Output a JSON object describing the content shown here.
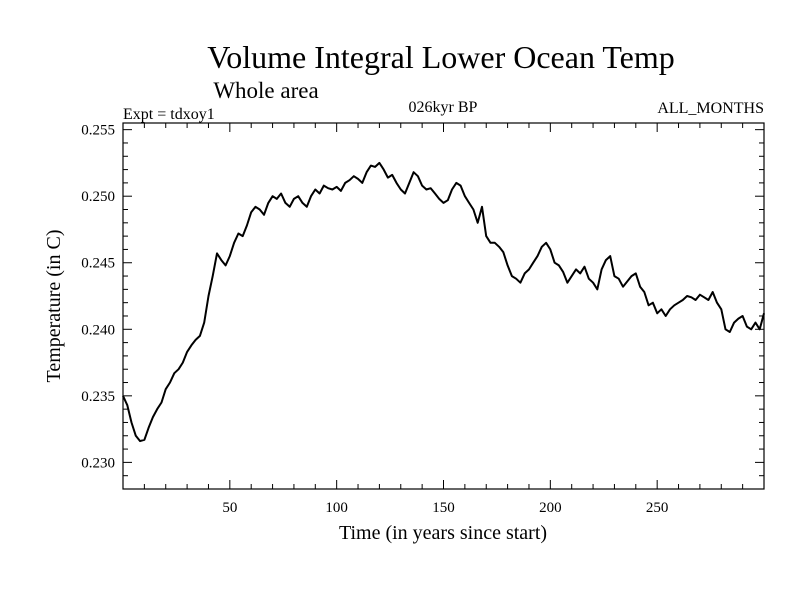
{
  "chart_data": {
    "type": "line",
    "title": "Volume Integral Lower Ocean Temp",
    "subtitle": "Whole area",
    "experiment": "Expt = tdxoy1",
    "period": "026kyr BP",
    "months": "ALL_MONTHS",
    "xlabel": "Time (in years since start)",
    "ylabel": "Temperature (in C)",
    "xlim": [
      0,
      300
    ],
    "ylim": [
      0.228,
      0.2555
    ],
    "xticks": [
      50,
      100,
      150,
      200,
      250
    ],
    "xtick_labels": [
      "50",
      "100",
      "150",
      "200",
      "250"
    ],
    "yticks": [
      0.23,
      0.235,
      0.24,
      0.245,
      0.25,
      0.255
    ],
    "ytick_labels": [
      "0.230",
      "0.235",
      "0.240",
      "0.245",
      "0.250",
      "0.255"
    ],
    "series": [
      {
        "name": "Volume Integral Lower Ocean Temp",
        "color": "#000000",
        "x": [
          0,
          2,
          4,
          6,
          8,
          10,
          12,
          14,
          16,
          18,
          20,
          22,
          24,
          26,
          28,
          30,
          32,
          34,
          36,
          38,
          40,
          42,
          44,
          46,
          48,
          50,
          52,
          54,
          56,
          58,
          60,
          62,
          64,
          66,
          68,
          70,
          72,
          74,
          76,
          78,
          80,
          82,
          84,
          86,
          88,
          90,
          92,
          94,
          96,
          98,
          100,
          102,
          104,
          106,
          108,
          110,
          112,
          114,
          116,
          118,
          120,
          122,
          124,
          126,
          128,
          130,
          132,
          134,
          136,
          138,
          140,
          142,
          144,
          146,
          148,
          150,
          152,
          154,
          156,
          158,
          160,
          162,
          164,
          166,
          168,
          170,
          172,
          174,
          176,
          178,
          180,
          182,
          184,
          186,
          188,
          190,
          192,
          194,
          196,
          198,
          200,
          202,
          204,
          206,
          208,
          210,
          212,
          214,
          216,
          218,
          220,
          222,
          224,
          226,
          228,
          230,
          232,
          234,
          236,
          238,
          240,
          242,
          244,
          246,
          248,
          250,
          252,
          254,
          256,
          258,
          260,
          262,
          264,
          266,
          268,
          270,
          272,
          274,
          276,
          278,
          280,
          282,
          284,
          286,
          288,
          290,
          292,
          294,
          296,
          298,
          300
        ],
        "values": [
          0.235,
          0.2343,
          0.233,
          0.232,
          0.2316,
          0.2317,
          0.2326,
          0.2334,
          0.234,
          0.2345,
          0.2355,
          0.236,
          0.2367,
          0.237,
          0.2375,
          0.2383,
          0.2388,
          0.2392,
          0.2395,
          0.2405,
          0.2425,
          0.244,
          0.2457,
          0.2452,
          0.2448,
          0.2455,
          0.2465,
          0.2472,
          0.247,
          0.2478,
          0.2488,
          0.2492,
          0.249,
          0.2486,
          0.2495,
          0.25,
          0.2498,
          0.2502,
          0.2495,
          0.2492,
          0.2498,
          0.25,
          0.2495,
          0.2492,
          0.25,
          0.2505,
          0.2502,
          0.2508,
          0.2506,
          0.2505,
          0.2507,
          0.2504,
          0.251,
          0.2512,
          0.2515,
          0.2513,
          0.251,
          0.2518,
          0.2523,
          0.2522,
          0.2525,
          0.252,
          0.2514,
          0.2516,
          0.251,
          0.2505,
          0.2502,
          0.251,
          0.2518,
          0.2515,
          0.2508,
          0.2505,
          0.2506,
          0.2502,
          0.2498,
          0.2495,
          0.2497,
          0.2505,
          0.251,
          0.2508,
          0.25,
          0.2495,
          0.249,
          0.248,
          0.2492,
          0.247,
          0.2465,
          0.2465,
          0.2462,
          0.2458,
          0.2448,
          0.244,
          0.2438,
          0.2435,
          0.2442,
          0.2445,
          0.245,
          0.2455,
          0.2462,
          0.2465,
          0.246,
          0.245,
          0.2448,
          0.2443,
          0.2435,
          0.244,
          0.2445,
          0.2442,
          0.2447,
          0.2438,
          0.2435,
          0.243,
          0.2445,
          0.2452,
          0.2455,
          0.244,
          0.2438,
          0.2432,
          0.2436,
          0.244,
          0.2442,
          0.2432,
          0.2428,
          0.2418,
          0.242,
          0.2412,
          0.2415,
          0.241,
          0.2415,
          0.2418,
          0.242,
          0.2422,
          0.2425,
          0.2424,
          0.2422,
          0.2426,
          0.2424,
          0.2422,
          0.2428,
          0.242,
          0.2415,
          0.24,
          0.2398,
          0.2405,
          0.2408,
          0.241,
          0.2402,
          0.24,
          0.2405,
          0.24,
          0.2412
        ]
      }
    ]
  }
}
